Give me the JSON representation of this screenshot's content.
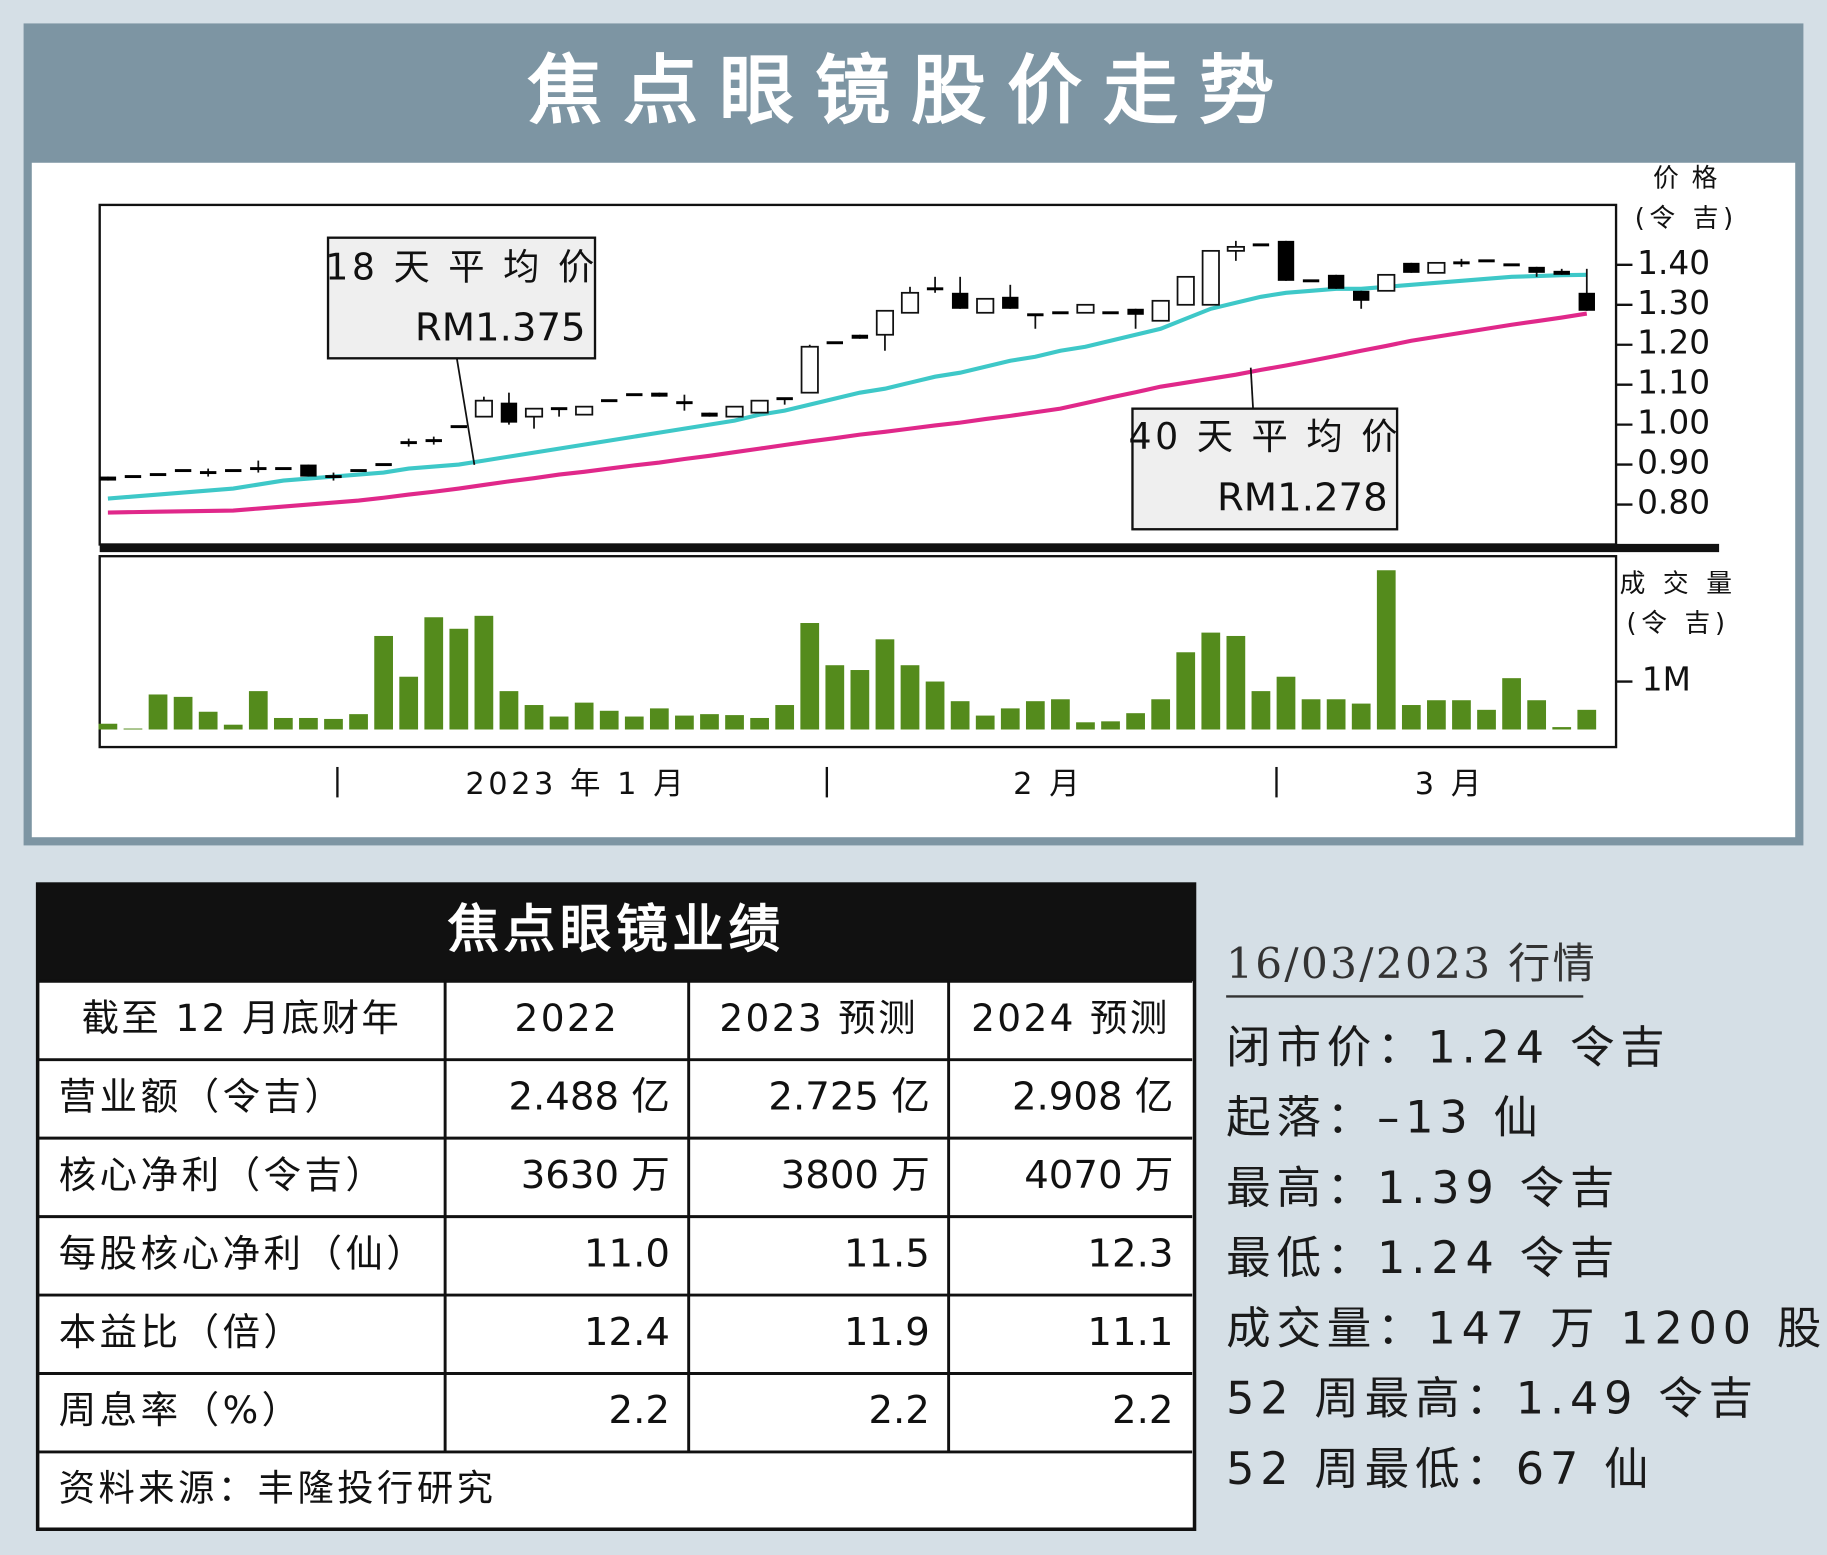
{
  "title": "焦点眼镜股价走势",
  "chart_data": [
    {
      "type": "candlestick",
      "y_label": "价 格",
      "y_unit": "(令 吉)",
      "x_labels": [
        "2023 年 1 月",
        "2 月",
        "3 月"
      ],
      "up_color": "#ffffff",
      "down_color": "#000000",
      "open": [
        0.87,
        0.87,
        0.875,
        0.885,
        0.88,
        0.885,
        0.89,
        0.89,
        0.9,
        0.87,
        0.885,
        0.9,
        0.955,
        0.96,
        0.995,
        1.02,
        1.055,
        1.02,
        1.04,
        1.025,
        1.06,
        1.075,
        1.08,
        1.055,
        1.03,
        1.02,
        1.03,
        1.065,
        1.08,
        1.205,
        1.225,
        1.225,
        1.28,
        1.34,
        1.33,
        1.28,
        1.32,
        1.275,
        1.28,
        1.28,
        1.28,
        1.29,
        1.26,
        1.3,
        1.3,
        1.435,
        1.45,
        1.46,
        1.36,
        1.375,
        1.335,
        1.335,
        1.405,
        1.38,
        1.405,
        1.41,
        1.4,
        1.395,
        1.385,
        1.33
      ],
      "high": [
        0.87,
        0.87,
        0.875,
        0.885,
        0.89,
        0.885,
        0.91,
        0.89,
        0.9,
        0.88,
        0.885,
        0.9,
        0.965,
        0.97,
        0.995,
        1.07,
        1.08,
        1.04,
        1.04,
        1.045,
        1.06,
        1.075,
        1.08,
        1.075,
        1.03,
        1.045,
        1.06,
        1.065,
        1.2,
        1.205,
        1.225,
        1.285,
        1.345,
        1.37,
        1.37,
        1.315,
        1.35,
        1.275,
        1.28,
        1.3,
        1.28,
        1.29,
        1.31,
        1.37,
        1.435,
        1.46,
        1.45,
        1.46,
        1.36,
        1.375,
        1.335,
        1.375,
        1.405,
        1.405,
        1.415,
        1.41,
        1.4,
        1.395,
        1.39,
        1.39
      ],
      "low": [
        0.86,
        0.87,
        0.875,
        0.885,
        0.87,
        0.885,
        0.88,
        0.89,
        0.87,
        0.86,
        0.885,
        0.9,
        0.945,
        0.95,
        0.995,
        1.02,
        1.0,
        0.99,
        1.02,
        1.025,
        1.06,
        1.075,
        1.07,
        1.035,
        1.02,
        1.02,
        1.03,
        1.05,
        1.08,
        1.205,
        1.215,
        1.185,
        1.28,
        1.33,
        1.29,
        1.28,
        1.29,
        1.24,
        1.28,
        1.28,
        1.28,
        1.24,
        1.26,
        1.3,
        1.3,
        1.41,
        1.45,
        1.36,
        1.36,
        1.34,
        1.29,
        1.335,
        1.38,
        1.38,
        1.395,
        1.41,
        1.4,
        1.37,
        1.375,
        1.285
      ],
      "close": [
        0.86,
        0.87,
        0.875,
        0.885,
        0.88,
        0.885,
        0.89,
        0.89,
        0.87,
        0.87,
        0.885,
        0.9,
        0.955,
        0.96,
        0.995,
        1.06,
        1.005,
        1.04,
        1.04,
        1.045,
        1.06,
        1.075,
        1.07,
        1.055,
        1.02,
        1.045,
        1.06,
        1.065,
        1.195,
        1.205,
        1.215,
        1.285,
        1.33,
        1.34,
        1.29,
        1.315,
        1.29,
        1.275,
        1.28,
        1.3,
        1.28,
        1.275,
        1.31,
        1.37,
        1.435,
        1.445,
        1.45,
        1.36,
        1.36,
        1.34,
        1.31,
        1.375,
        1.38,
        1.405,
        1.405,
        1.41,
        1.4,
        1.38,
        1.375,
        1.285
      ],
      "series": [
        {
          "name": "18 天 平 均 价",
          "last_value_label": "RM1.375",
          "color": "#3ec8c8",
          "values": [
            0.815,
            0.82,
            0.825,
            0.83,
            0.835,
            0.84,
            0.85,
            0.86,
            0.865,
            0.87,
            0.875,
            0.88,
            0.89,
            0.895,
            0.9,
            0.91,
            0.92,
            0.93,
            0.94,
            0.95,
            0.96,
            0.97,
            0.98,
            0.99,
            1.0,
            1.01,
            1.025,
            1.035,
            1.05,
            1.065,
            1.08,
            1.09,
            1.105,
            1.12,
            1.13,
            1.145,
            1.16,
            1.17,
            1.185,
            1.195,
            1.21,
            1.225,
            1.24,
            1.265,
            1.29,
            1.305,
            1.32,
            1.33,
            1.335,
            1.34,
            1.34,
            1.345,
            1.35,
            1.355,
            1.36,
            1.365,
            1.37,
            1.372,
            1.374,
            1.375
          ]
        },
        {
          "name": "40 天 平 均 价",
          "last_value_label": "RM1.278",
          "color": "#e0288a",
          "values": [
            0.78,
            0.781,
            0.782,
            0.783,
            0.784,
            0.785,
            0.79,
            0.795,
            0.8,
            0.805,
            0.81,
            0.817,
            0.825,
            0.832,
            0.84,
            0.849,
            0.858,
            0.866,
            0.875,
            0.882,
            0.89,
            0.898,
            0.905,
            0.914,
            0.922,
            0.931,
            0.94,
            0.949,
            0.958,
            0.966,
            0.975,
            0.982,
            0.99,
            0.998,
            1.005,
            1.014,
            1.022,
            1.031,
            1.04,
            1.054,
            1.068,
            1.081,
            1.095,
            1.105,
            1.115,
            1.125,
            1.137,
            1.148,
            1.16,
            1.172,
            1.185,
            1.197,
            1.21,
            1.22,
            1.23,
            1.24,
            1.25,
            1.259,
            1.268,
            1.278
          ]
        }
      ],
      "ylim": [
        0.7,
        1.55
      ],
      "yticks": [
        {
          "value": 0.8,
          "label": "0.80"
        },
        {
          "value": 0.9,
          "label": "0.90"
        },
        {
          "value": 1.0,
          "label": "1.00"
        },
        {
          "value": 1.1,
          "label": "1.10"
        },
        {
          "value": 1.2,
          "label": "1.20"
        },
        {
          "value": 1.3,
          "label": "1.30"
        },
        {
          "value": 1.4,
          "label": "1.40"
        }
      ]
    },
    {
      "type": "bar",
      "y_label": "成 交 量",
      "y_unit": "(令 吉)",
      "color": "#548b1c",
      "values": [
        120000,
        20000,
        730000,
        680000,
        370000,
        100000,
        800000,
        240000,
        240000,
        220000,
        320000,
        1950000,
        1100000,
        2340000,
        2100000,
        2370000,
        800000,
        510000,
        270000,
        560000,
        390000,
        270000,
        440000,
        290000,
        320000,
        300000,
        240000,
        510000,
        2220000,
        1340000,
        1240000,
        1880000,
        1340000,
        1000000,
        590000,
        290000,
        440000,
        590000,
        630000,
        150000,
        170000,
        340000,
        630000,
        1610000,
        2020000,
        1950000,
        800000,
        1100000,
        630000,
        630000,
        540000,
        3320000,
        510000,
        610000,
        610000,
        410000,
        1070000,
        610000,
        50000,
        410000
      ],
      "ylim": [
        0,
        3540000
      ],
      "yticks": [
        {
          "value": 1000000,
          "label": "1M"
        }
      ]
    }
  ],
  "table": {
    "title": "焦点眼镜业绩",
    "header": [
      "截至 12 月底财年",
      "2022",
      "2023 预测",
      "2024 预测"
    ],
    "rows": [
      [
        "营业额（令吉）",
        "2.488 亿",
        "2.725 亿",
        "2.908 亿"
      ],
      [
        "核心净利（令吉）",
        "3630 万",
        "3800 万",
        "4070 万"
      ],
      [
        "每股核心净利（仙）",
        "11.0",
        "11.5",
        "12.3"
      ],
      [
        "本益比（倍）",
        "12.4",
        "11.9",
        "11.1"
      ],
      [
        "周息率（%）",
        "2.2",
        "2.2",
        "2.2"
      ]
    ],
    "source": "资料来源：丰隆投行研究"
  },
  "market": {
    "date": "16/03/2023 行情",
    "items": [
      "闭市价：1.24 令吉",
      "起落：–13 仙",
      "最高：1.39 令吉",
      "最低：1.24 令吉",
      "成交量：147 万 1200 股",
      "52 周最高：1.49 令吉",
      "52 周最低：67 仙"
    ]
  }
}
